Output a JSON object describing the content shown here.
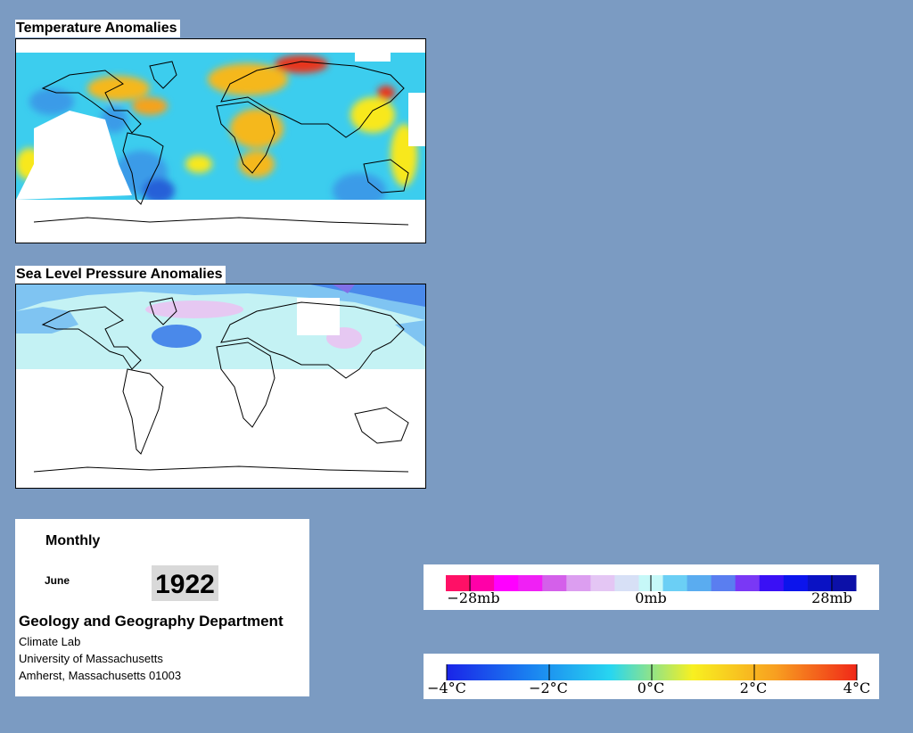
{
  "temperature_map": {
    "title": "Temperature Anomalies",
    "colors": {
      "warm": "#f5a31c",
      "hot": "#e8341c",
      "yellow": "#f8e81a",
      "cyan": "#30d6f0",
      "blue": "#3a9be8",
      "deep_blue": "#2760d8",
      "nodata": "#ffffff"
    }
  },
  "pressure_map": {
    "title": "Sea Level Pressure Anomalies",
    "colors": {
      "band": "#c4f2f4",
      "light_blue": "#7fc4f2",
      "mid_blue": "#4a89ea",
      "purple": "#8070e8",
      "pink": "#e6c8f2",
      "nodata": "#ffffff"
    }
  },
  "info": {
    "frequency": "Monthly",
    "month": "June",
    "year": "1922",
    "department": "Geology and Geography Department",
    "lines": [
      "Climate Lab",
      "University of Massachusetts",
      "Amherst, Massachusetts 01003"
    ]
  },
  "pressure_legend": {
    "labels": [
      "−28mb",
      "0mb",
      "28mb"
    ],
    "colors": [
      "#ff1066",
      "#ff00a8",
      "#ff00ff",
      "#f020f5",
      "#d460ea",
      "#dc9ef0",
      "#e4c6f4",
      "#d7e0f6",
      "#c6f8f8",
      "#6bcff5",
      "#5aacf0",
      "#5a7ef0",
      "#7a38f5",
      "#3a10f5",
      "#0c14ec",
      "#0a12c4",
      "#0c10a8"
    ]
  },
  "temperature_legend": {
    "labels": [
      "−4°C",
      "−2°C",
      "0°C",
      "2°C",
      "4°C"
    ],
    "gradient": [
      "#1a24e8",
      "#1a80f0",
      "#28d6f0",
      "#f8f020",
      "#f8a020",
      "#f02818"
    ]
  }
}
